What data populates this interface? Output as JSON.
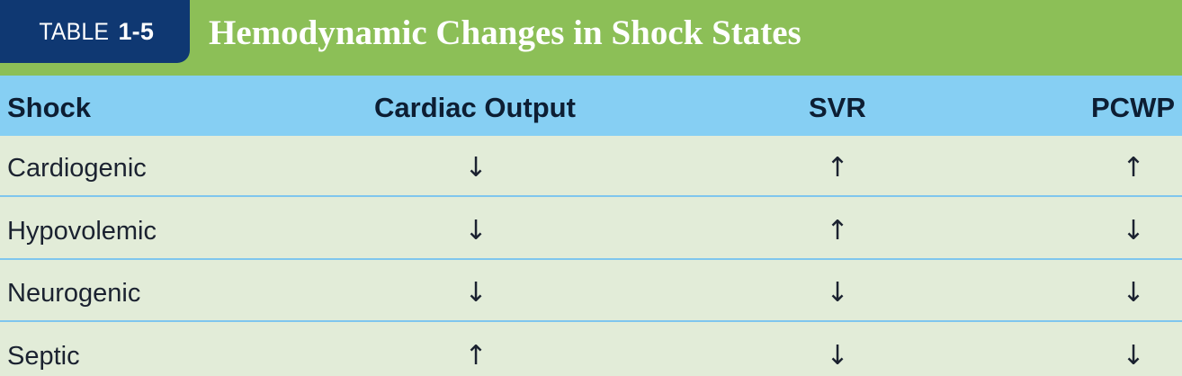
{
  "table": {
    "label_word": "TABLE",
    "label_number": "1-5",
    "title": "Hemodynamic Changes in Shock States",
    "columns": [
      "Shock",
      "Cardiac Output",
      "SVR",
      "PCWP"
    ],
    "rows": [
      {
        "shock": "Cardiogenic",
        "cardiac_output": "↓",
        "svr": "↑",
        "pcwp": "↑"
      },
      {
        "shock": "Hypovolemic",
        "cardiac_output": "↓",
        "svr": "↑",
        "pcwp": "↓"
      },
      {
        "shock": "Neurogenic",
        "cardiac_output": "↓",
        "svr": "↓",
        "pcwp": "↓"
      },
      {
        "shock": "Septic",
        "cardiac_output": "↑",
        "svr": "↓",
        "pcwp": "↓"
      }
    ]
  },
  "colors": {
    "banner_green": "#8cbf57",
    "label_navy": "#0f3872",
    "header_blue": "#86cff3",
    "body_background": "#e2ecd8",
    "row_divider": "#7fc6ee"
  }
}
